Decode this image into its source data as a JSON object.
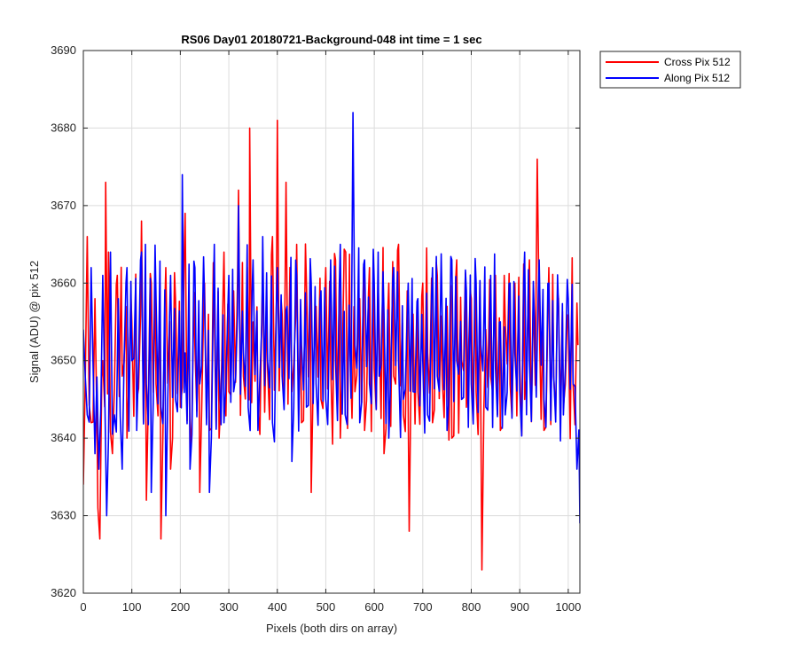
{
  "chart_data": {
    "type": "line",
    "title": "RS06 Day01 20180721-Background-048 int time = 1 sec",
    "xlabel": "Pixels (both dirs on array)",
    "ylabel": "Signal (ADU) @ pix 512",
    "xlim": [
      0,
      1024
    ],
    "ylim": [
      3620,
      3690
    ],
    "xticks": [
      0,
      100,
      200,
      300,
      400,
      500,
      600,
      700,
      800,
      900,
      1000
    ],
    "yticks": [
      3620,
      3630,
      3640,
      3650,
      3660,
      3670,
      3680,
      3690
    ],
    "grid": true,
    "legend_position": "outside-top-right",
    "series": [
      {
        "name": "Cross Pix 512",
        "color": "#ff0000",
        "sample_step": 4,
        "points": [
          [
            0,
            3634
          ],
          [
            8,
            3666
          ],
          [
            16,
            3642
          ],
          [
            24,
            3658
          ],
          [
            30,
            3631
          ],
          [
            34,
            3627
          ],
          [
            40,
            3650
          ],
          [
            46,
            3673
          ],
          [
            52,
            3664
          ],
          [
            60,
            3638
          ],
          [
            70,
            3661
          ],
          [
            80,
            3648
          ],
          [
            90,
            3640
          ],
          [
            100,
            3655
          ],
          [
            110,
            3645
          ],
          [
            120,
            3668
          ],
          [
            130,
            3632
          ],
          [
            140,
            3660
          ],
          [
            150,
            3647
          ],
          [
            160,
            3627
          ],
          [
            170,
            3662
          ],
          [
            180,
            3636
          ],
          [
            190,
            3658
          ],
          [
            200,
            3644
          ],
          [
            210,
            3669
          ],
          [
            220,
            3638
          ],
          [
            230,
            3652
          ],
          [
            240,
            3633
          ],
          [
            250,
            3660
          ],
          [
            260,
            3641
          ],
          [
            270,
            3656
          ],
          [
            280,
            3640
          ],
          [
            290,
            3664
          ],
          [
            300,
            3646
          ],
          [
            310,
            3659
          ],
          [
            320,
            3672
          ],
          [
            330,
            3648
          ],
          [
            343,
            3680
          ],
          [
            350,
            3655
          ],
          [
            360,
            3644
          ],
          [
            370,
            3661
          ],
          [
            380,
            3649
          ],
          [
            390,
            3666
          ],
          [
            400,
            3681
          ],
          [
            410,
            3656
          ],
          [
            418,
            3673
          ],
          [
            430,
            3646
          ],
          [
            440,
            3665
          ],
          [
            450,
            3642
          ],
          [
            460,
            3660
          ],
          [
            470,
            3633
          ],
          [
            480,
            3657
          ],
          [
            490,
            3645
          ],
          [
            500,
            3662
          ],
          [
            510,
            3650
          ],
          [
            520,
            3663
          ],
          [
            530,
            3640
          ],
          [
            541,
            3664
          ],
          [
            550,
            3652
          ],
          [
            560,
            3646
          ],
          [
            570,
            3658
          ],
          [
            580,
            3641
          ],
          [
            590,
            3662
          ],
          [
            600,
            3649
          ],
          [
            610,
            3655
          ],
          [
            620,
            3638
          ],
          [
            630,
            3660
          ],
          [
            640,
            3648
          ],
          [
            650,
            3665
          ],
          [
            660,
            3643
          ],
          [
            672,
            3628
          ],
          [
            680,
            3656
          ],
          [
            690,
            3646
          ],
          [
            700,
            3660
          ],
          [
            710,
            3651
          ],
          [
            720,
            3642
          ],
          [
            730,
            3661
          ],
          [
            740,
            3648
          ],
          [
            750,
            3657
          ],
          [
            760,
            3640
          ],
          [
            770,
            3663
          ],
          [
            780,
            3650
          ],
          [
            790,
            3644
          ],
          [
            800,
            3658
          ],
          [
            810,
            3646
          ],
          [
            822,
            3623
          ],
          [
            830,
            3654
          ],
          [
            840,
            3648
          ],
          [
            850,
            3661
          ],
          [
            860,
            3641
          ],
          [
            870,
            3655
          ],
          [
            880,
            3647
          ],
          [
            890,
            3660
          ],
          [
            900,
            3650
          ],
          [
            910,
            3645
          ],
          [
            920,
            3663
          ],
          [
            936,
            3676
          ],
          [
            940,
            3656
          ],
          [
            950,
            3641
          ],
          [
            960,
            3662
          ],
          [
            970,
            3648
          ],
          [
            980,
            3658
          ],
          [
            990,
            3644
          ],
          [
            1000,
            3655
          ],
          [
            1010,
            3647
          ],
          [
            1020,
            3652
          ]
        ]
      },
      {
        "name": "Along Pix 512",
        "color": "#0000ff",
        "sample_step": 4,
        "points": [
          [
            0,
            3654
          ],
          [
            8,
            3643
          ],
          [
            16,
            3662
          ],
          [
            24,
            3638
          ],
          [
            32,
            3636
          ],
          [
            40,
            3661
          ],
          [
            48,
            3630
          ],
          [
            56,
            3664
          ],
          [
            64,
            3643
          ],
          [
            72,
            3658
          ],
          [
            80,
            3636
          ],
          [
            90,
            3662
          ],
          [
            100,
            3650
          ],
          [
            110,
            3641
          ],
          [
            120,
            3664
          ],
          [
            130,
            3647
          ],
          [
            140,
            3633
          ],
          [
            150,
            3658
          ],
          [
            160,
            3644
          ],
          [
            170,
            3630
          ],
          [
            180,
            3661
          ],
          [
            190,
            3645
          ],
          [
            204,
            3674
          ],
          [
            210,
            3651
          ],
          [
            220,
            3636
          ],
          [
            230,
            3662
          ],
          [
            240,
            3647
          ],
          [
            250,
            3658
          ],
          [
            260,
            3633
          ],
          [
            270,
            3665
          ],
          [
            280,
            3649
          ],
          [
            290,
            3642
          ],
          [
            300,
            3661
          ],
          [
            310,
            3646
          ],
          [
            320,
            3670
          ],
          [
            330,
            3651
          ],
          [
            340,
            3644
          ],
          [
            350,
            3663
          ],
          [
            360,
            3641
          ],
          [
            370,
            3666
          ],
          [
            380,
            3650
          ],
          [
            390,
            3642
          ],
          [
            400,
            3662
          ],
          [
            410,
            3648
          ],
          [
            420,
            3657
          ],
          [
            430,
            3637
          ],
          [
            440,
            3661
          ],
          [
            450,
            3652
          ],
          [
            460,
            3644
          ],
          [
            470,
            3660
          ],
          [
            480,
            3647
          ],
          [
            490,
            3659
          ],
          [
            500,
            3645
          ],
          [
            510,
            3663
          ],
          [
            520,
            3650
          ],
          [
            530,
            3665
          ],
          [
            540,
            3643
          ],
          [
            556,
            3682
          ],
          [
            560,
            3652
          ],
          [
            570,
            3642
          ],
          [
            580,
            3663
          ],
          [
            590,
            3647
          ],
          [
            600,
            3660
          ],
          [
            610,
            3648
          ],
          [
            620,
            3656
          ],
          [
            630,
            3640
          ],
          [
            640,
            3662
          ],
          [
            650,
            3650
          ],
          [
            660,
            3645
          ],
          [
            670,
            3660
          ],
          [
            680,
            3646
          ],
          [
            690,
            3658
          ],
          [
            700,
            3650
          ],
          [
            710,
            3643
          ],
          [
            720,
            3662
          ],
          [
            730,
            3648
          ],
          [
            740,
            3656
          ],
          [
            750,
            3641
          ],
          [
            760,
            3663
          ],
          [
            770,
            3650
          ],
          [
            780,
            3645
          ],
          [
            790,
            3659
          ],
          [
            800,
            3647
          ],
          [
            810,
            3660
          ],
          [
            820,
            3652
          ],
          [
            830,
            3644
          ],
          [
            840,
            3661
          ],
          [
            850,
            3649
          ],
          [
            860,
            3655
          ],
          [
            870,
            3643
          ],
          [
            880,
            3660
          ],
          [
            890,
            3651
          ],
          [
            900,
            3646
          ],
          [
            910,
            3664
          ],
          [
            920,
            3650
          ],
          [
            930,
            3656
          ],
          [
            940,
            3663
          ],
          [
            950,
            3645
          ],
          [
            960,
            3660
          ],
          [
            970,
            3648
          ],
          [
            980,
            3657
          ],
          [
            990,
            3643
          ],
          [
            1000,
            3658
          ],
          [
            1010,
            3647
          ],
          [
            1018,
            3636
          ],
          [
            1024,
            3629
          ]
        ]
      }
    ]
  }
}
